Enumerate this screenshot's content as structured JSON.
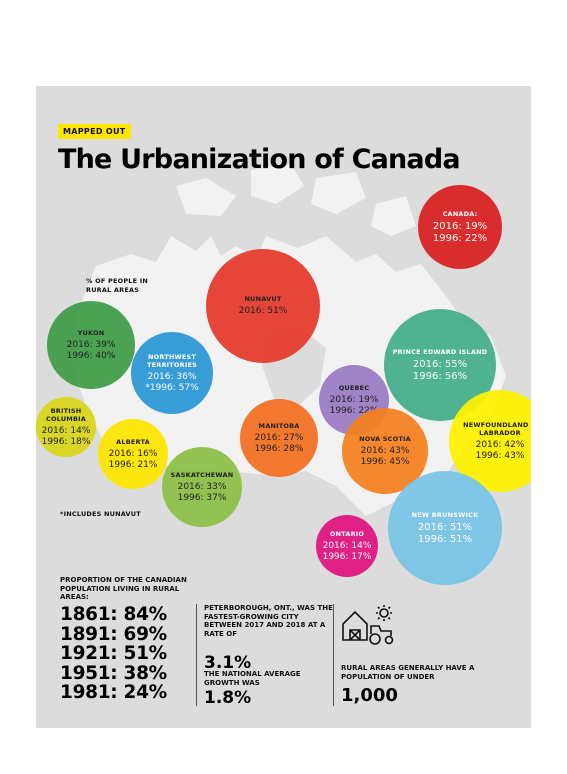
{
  "header": {
    "badge": "MAPPED OUT",
    "title": "The Urbanization of Canada"
  },
  "legend_note": "% OF PEOPLE IN RURAL AREAS",
  "footnote": "*INCLUDES NUNAVUT",
  "regions": [
    {
      "name": "CANADA:",
      "y2016": "2016: 19%",
      "y1996": "1996: 22%",
      "color": "#d8201f"
    },
    {
      "name": "NUNAVUT",
      "y2016": "2016: 51%",
      "y1996": "",
      "color": "#e53a2b"
    },
    {
      "name": "YUKON",
      "y2016": "2016: 39%",
      "y1996": "1996: 40%",
      "color": "#3f9c46"
    },
    {
      "name": "NORTHWEST TERRITORIES",
      "y2016": "2016: 36%",
      "y1996": "*1996: 57%",
      "color": "#2b97d5"
    },
    {
      "name": "PRINCE EDWARD ISLAND",
      "y2016": "2016: 55%",
      "y1996": "1996: 56%",
      "color": "#43ae8a"
    },
    {
      "name": "QUEBEC",
      "y2016": "2016: 19%",
      "y1996": "1996: 22%",
      "color": "#9a7ac3"
    },
    {
      "name": "NEWFOUNDLAND & LABRADOR",
      "y2016": "2016: 42%",
      "y1996": "1996: 43%",
      "color": "#fff200"
    },
    {
      "name": "BRITISH COLUMBIA",
      "y2016": "2016: 14%",
      "y1996": "1996: 18%",
      "color": "#d9d61b"
    },
    {
      "name": "ALBERTA",
      "y2016": "2016: 16%",
      "y1996": "1996: 21%",
      "color": "#ffe600"
    },
    {
      "name": "MANITOBA",
      "y2016": "2016: 27%",
      "y1996": "1996: 28%",
      "color": "#f26f21"
    },
    {
      "name": "NOVA SCOTIA",
      "y2016": "2016: 43%",
      "y1996": "1996: 45%",
      "color": "#f6801f"
    },
    {
      "name": "SASKATCHEWAN",
      "y2016": "2016: 33%",
      "y1996": "1996: 37%",
      "color": "#8cc046"
    },
    {
      "name": "NEW BRUNSWICK",
      "y2016": "2016: 51%",
      "y1996": "1996: 51%",
      "color": "#78c4e6"
    },
    {
      "name": "ONTARIO",
      "y2016": "2016: 14%",
      "y1996": "1996: 17%",
      "color": "#e0127e"
    }
  ],
  "historical": {
    "heading": "PROPORTION OF THE CANADIAN POPULATION LIVING IN RURAL AREAS:",
    "rows": [
      "1861: 84%",
      "1891: 69%",
      "1921: 51%",
      "1951: 38%",
      "1981: 24%"
    ]
  },
  "peterborough": {
    "text": "PETERBOROUGH, ONT., WAS THE FASTEST-GROWING CITY BETWEEN 2017 AND 2018 AT A RATE OF",
    "rate": "3.1%",
    "national_text": "THE NATIONAL AVERAGE GROWTH WAS",
    "national_rate": "1.8%"
  },
  "rural_pop": {
    "text": "RURAL AREAS GENERALLY HAVE A POPULATION OF UNDER",
    "value": "1,000",
    "icon": "farm-icon"
  }
}
